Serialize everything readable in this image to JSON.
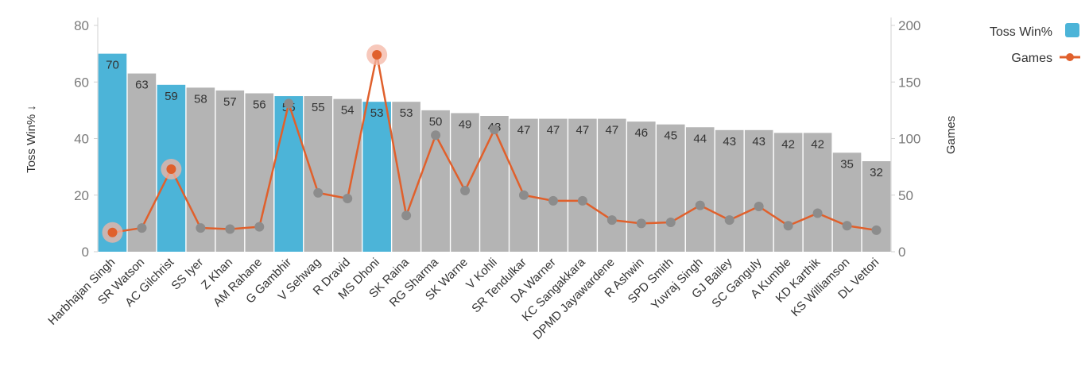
{
  "chart_data": {
    "type": "bar",
    "categories": [
      "Harbhajan Singh",
      "SR Watson",
      "AC Gilchrist",
      "SS Iyer",
      "Z Khan",
      "AM Rahane",
      "G Gambhir",
      "V Sehwag",
      "R Dravid",
      "MS Dhoni",
      "SK Raina",
      "RG Sharma",
      "SK Warne",
      "V Kohli",
      "SR Tendulkar",
      "DA Warner",
      "KC Sangakkara",
      "DPMD Jayawardene",
      "R Ashwin",
      "SPD Smith",
      "Yuvraj Singh",
      "GJ Bailey",
      "SC Ganguly",
      "A Kumble",
      "KD Karthik",
      "KS Williamson",
      "DL Vettori"
    ],
    "series": [
      {
        "name": "Toss Win%",
        "type": "bar",
        "axis": "left",
        "values": [
          70,
          63,
          59,
          58,
          57,
          56,
          55,
          55,
          54,
          53,
          53,
          50,
          49,
          48,
          47,
          47,
          47,
          47,
          46,
          45,
          44,
          43,
          43,
          42,
          42,
          35,
          32
        ],
        "labels": [
          "70",
          "63",
          "59",
          "58",
          "57",
          "56",
          "55",
          "55",
          "54",
          "53",
          "53",
          "50",
          "49",
          "48",
          "47",
          "47",
          "47",
          "47",
          "46",
          "45",
          "44",
          "43",
          "43",
          "42",
          "42",
          "35",
          "32"
        ],
        "highlighted": [
          true,
          false,
          true,
          false,
          false,
          false,
          true,
          false,
          false,
          true,
          false,
          false,
          false,
          false,
          false,
          false,
          false,
          false,
          false,
          false,
          false,
          false,
          false,
          false,
          false,
          false,
          false
        ]
      },
      {
        "name": "Games",
        "type": "line",
        "axis": "right",
        "values": [
          17,
          21,
          73,
          21,
          20,
          22,
          131,
          52,
          47,
          174,
          32,
          103,
          54,
          108,
          50,
          45,
          45,
          28,
          25,
          26,
          41,
          28,
          40,
          23,
          34,
          23,
          19
        ],
        "emphasized": [
          true,
          false,
          true,
          false,
          false,
          false,
          false,
          false,
          false,
          true,
          false,
          false,
          false,
          false,
          false,
          false,
          false,
          false,
          false,
          false,
          false,
          false,
          false,
          false,
          false,
          false,
          false
        ]
      }
    ],
    "y_left": {
      "label": "Toss Win% ↓",
      "range": [
        0,
        80
      ],
      "ticks": [
        "0",
        "20",
        "40",
        "60",
        "80"
      ]
    },
    "y_right": {
      "label": "Games",
      "range": [
        0,
        200
      ],
      "ticks": [
        "0",
        "50",
        "100",
        "150",
        "200"
      ]
    },
    "legend": {
      "position": "top-right",
      "items": [
        "Toss Win%",
        "Games"
      ]
    },
    "grid": false,
    "colors": {
      "bar_default": "#b4b4b4",
      "bar_highlight": "#4cb4d8",
      "line": "#e0602c",
      "point": "#8c8c8c",
      "halo": "#f4b6a4"
    }
  }
}
